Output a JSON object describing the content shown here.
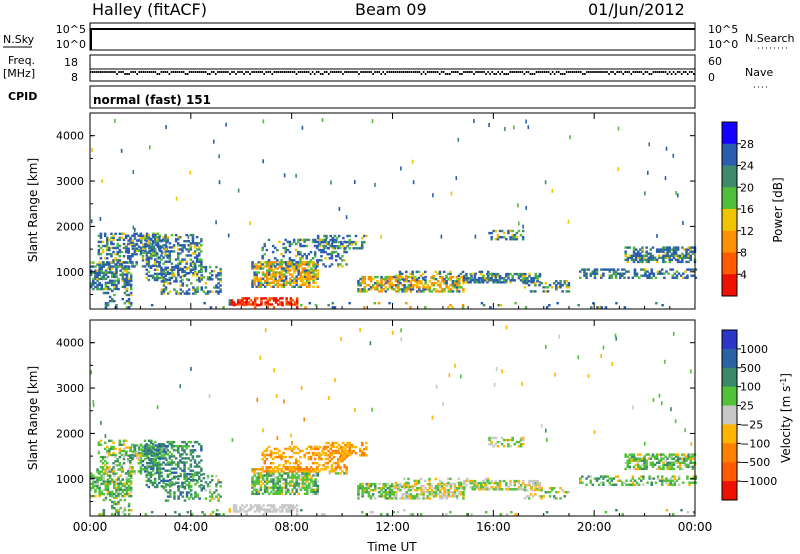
{
  "header": {
    "station": "Halley (fitACF)",
    "beam": "Beam 09",
    "date": "01/Jun/2012"
  },
  "summary": {
    "nsky_label": "N.Sky",
    "nsky_ticks": [
      "10^5",
      "10^0"
    ],
    "nsearch_label": "N.Search",
    "nsearch_ticks": [
      "10^5",
      "10^0"
    ],
    "freq_label": "Freq.",
    "freq_unit": "[MHz]",
    "freq_ticks": [
      "18",
      "8"
    ],
    "nave_label": "Nave",
    "nave_ticks": [
      "60",
      "0"
    ],
    "cpid_label": "CPID",
    "cpid_value": "normal (fast) 151"
  },
  "chart_data": [
    {
      "type": "heatmap",
      "name": "power",
      "ylabel": "Slant Range [km]",
      "y_ticks": [
        "1000",
        "2000",
        "3000",
        "4000"
      ],
      "ylim": [
        180,
        4500
      ],
      "xlim_hours": [
        0,
        24
      ],
      "colorbar_label": "Power [dB]",
      "colorbar_ticks": [
        "4",
        "8",
        "12",
        "16",
        "20",
        "24",
        "28"
      ],
      "colorbar_colors": [
        "#1400ff",
        "#2a5cb0",
        "#3e8a6a",
        "#4fbe3a",
        "#f2c400",
        "#ff9000",
        "#ff5a00",
        "#ee1000"
      ],
      "colorbar_range": [
        0,
        32
      ]
    },
    {
      "type": "heatmap",
      "name": "velocity",
      "ylabel": "Slant Range [km]",
      "y_ticks": [
        "1000",
        "2000",
        "3000",
        "4000"
      ],
      "ylim": [
        180,
        4500
      ],
      "xlim_hours": [
        0,
        24
      ],
      "x_ticks": [
        "00:00",
        "04:00",
        "08:00",
        "12:00",
        "16:00",
        "20:00",
        "00:00"
      ],
      "xlabel": "Time UT",
      "colorbar_label": "Velocity [m s",
      "colorbar_label_sup": "-1",
      "colorbar_label_end": "]",
      "colorbar_ticks": [
        "1000",
        "500",
        "100",
        "25",
        "−25",
        "−100",
        "−500",
        "−1000"
      ],
      "colorbar_colors": [
        "#2a36c8",
        "#2a62a6",
        "#3a8a6a",
        "#52c23a",
        "#c8c8c8",
        "#ffb400",
        "#ff8000",
        "#ff5a00",
        "#ee1000"
      ]
    }
  ]
}
